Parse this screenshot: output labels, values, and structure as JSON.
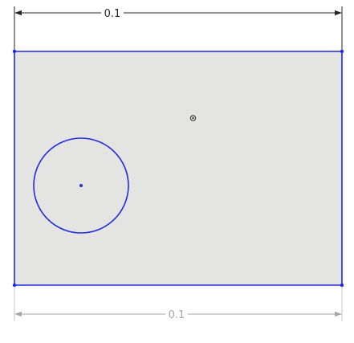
{
  "sketch": {
    "dimensions": {
      "top": {
        "label": "0.1"
      },
      "bottom": {
        "label": "0.1"
      }
    },
    "icons": {
      "origin": "origin-marker-icon",
      "circle_center": "circle-center-point-icon",
      "vertex": "vertex-point-icon"
    },
    "colors": {
      "sketch_line": "#1f2bdc",
      "face_fill": "#e4e5e3",
      "dimension_active": "#222222",
      "dimension_inactive": "#a6a6a6",
      "background": "#ffffff"
    }
  }
}
